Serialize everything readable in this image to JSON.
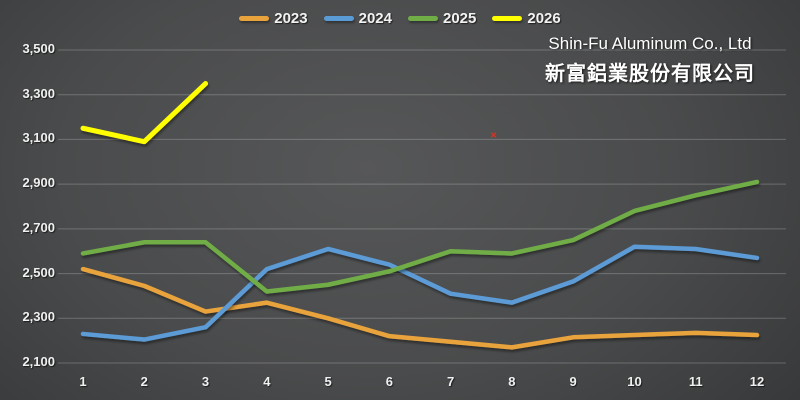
{
  "company": {
    "name_en": "Shin-Fu Aluminum Co., Ltd",
    "name_zh": "新富鋁業股份有限公司"
  },
  "colors": {
    "background_center": "#565758",
    "background_edge": "#2c2d2e",
    "gridline": "rgba(255,255,255,0.22)",
    "label_text": "#f0f0f0",
    "annotation_red": "#C0392B"
  },
  "legend": [
    {
      "label": "2023",
      "color": "#E8A33D"
    },
    {
      "label": "2024",
      "color": "#5B9BD5"
    },
    {
      "label": "2025",
      "color": "#70AD47"
    },
    {
      "label": "2026",
      "color": "#FFFF00"
    }
  ],
  "chart_data": {
    "type": "line",
    "title": "Shin-Fu Aluminum Co., Ltd 新富鋁業股份有限公司",
    "xlabel": "",
    "ylabel": "",
    "x": [
      1,
      2,
      3,
      4,
      5,
      6,
      7,
      8,
      9,
      10,
      11,
      12
    ],
    "xtick_labels": [
      "1",
      "2",
      "3",
      "4",
      "5",
      "6",
      "7",
      "8",
      "9",
      "10",
      "11",
      "12"
    ],
    "ylim": [
      2100,
      3500
    ],
    "ytick_step": 200,
    "yticks": [
      {
        "value": 3500,
        "label": "3,500"
      },
      {
        "value": 3300,
        "label": "3,300"
      },
      {
        "value": 3100,
        "label": "3,100"
      },
      {
        "value": 2900,
        "label": "2,900"
      },
      {
        "value": 2700,
        "label": "2,700"
      },
      {
        "value": 2500,
        "label": "2,500"
      },
      {
        "value": 2300,
        "label": "2,300"
      },
      {
        "value": 2100,
        "label": "2,100"
      }
    ],
    "grid": true,
    "legend_position": "top",
    "series": [
      {
        "name": "2023",
        "color": "#E8A33D",
        "values": [
          2520,
          2445,
          2330,
          2370,
          2300,
          2220,
          2195,
          2170,
          2215,
          2225,
          2235,
          2225
        ]
      },
      {
        "name": "2024",
        "color": "#5B9BD5",
        "values": [
          2230,
          2205,
          2260,
          2520,
          2610,
          2540,
          2410,
          2370,
          2465,
          2620,
          2610,
          2570
        ]
      },
      {
        "name": "2025",
        "color": "#70AD47",
        "values": [
          2590,
          2640,
          2640,
          2420,
          2450,
          2510,
          2600,
          2590,
          2650,
          2780,
          2850,
          2910
        ]
      },
      {
        "name": "2026",
        "color": "#FFFF00",
        "values": [
          3150,
          3090,
          3350
        ]
      }
    ],
    "annotations": [
      {
        "type": "x-marker",
        "x": 7.7,
        "value": 3120,
        "color": "#C0392B"
      }
    ]
  }
}
